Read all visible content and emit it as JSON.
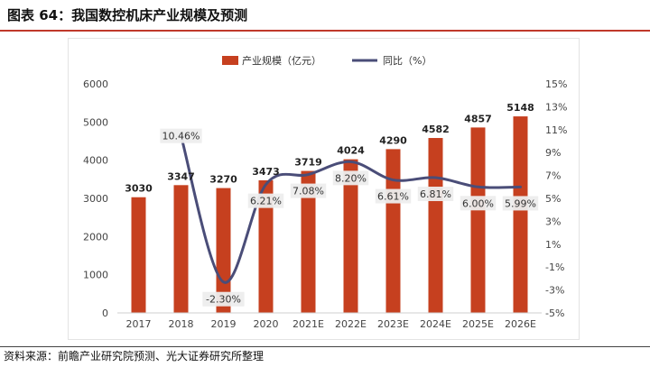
{
  "figure": {
    "title": "图表 64：我国数控机床产业规模及预测",
    "source": "资料来源：前瞻产业研究院预测、光大证券研究所整理"
  },
  "colors": {
    "bar": "#c6401f",
    "line": "#4a4d78",
    "title_rule": "#c0392b"
  },
  "chart_data": {
    "type": "bar",
    "categories": [
      "2017",
      "2018",
      "2019",
      "2020",
      "2021E",
      "2022E",
      "2023E",
      "2024E",
      "2025E",
      "2026E"
    ],
    "series": [
      {
        "name": "产业规模（亿元）",
        "type": "bar",
        "axis": "left",
        "values": [
          3030,
          3347,
          3270,
          3473,
          3719,
          4024,
          4290,
          4582,
          4857,
          5148
        ],
        "labels": [
          "3030",
          "3347",
          "3270",
          "3473",
          "3719",
          "4024",
          "4290",
          "4582",
          "4857",
          "5148"
        ]
      },
      {
        "name": "同比（%）",
        "type": "line",
        "axis": "right",
        "values": [
          null,
          10.46,
          -2.3,
          6.21,
          7.08,
          8.2,
          6.61,
          6.81,
          6.0,
          5.99
        ],
        "labels": [
          "",
          "10.46%",
          "-2.30%",
          "6.21%",
          "7.08%",
          "8.20%",
          "6.61%",
          "6.81%",
          "6.00%",
          "5.99%"
        ]
      }
    ],
    "ylim_left": [
      0,
      6000
    ],
    "yticks_left": [
      "6000",
      "5000",
      "4000",
      "3000",
      "2000",
      "1000",
      "0"
    ],
    "ylim_right": [
      -5,
      15
    ],
    "yticks_right": [
      "15%",
      "13%",
      "11%",
      "9%",
      "7%",
      "5%",
      "3%",
      "1%",
      "-1%",
      "-3%",
      "-5%"
    ],
    "grid": false,
    "legend_position": "top-center"
  }
}
